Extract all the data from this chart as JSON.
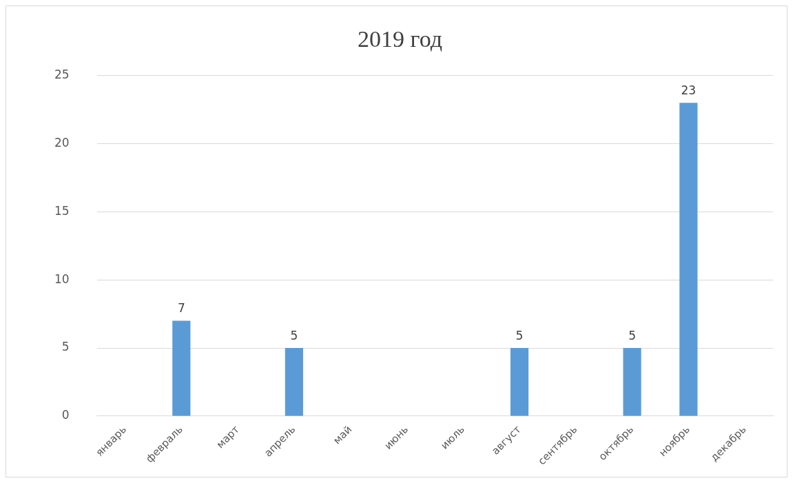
{
  "chart_data": {
    "type": "bar",
    "title": "2019 год",
    "categories": [
      "январь",
      "февраль",
      "март",
      "апрель",
      "май",
      "июнь",
      "июль",
      "август",
      "сентябрь",
      "октябрь",
      "ноябрь",
      "декабрь"
    ],
    "values": [
      null,
      7,
      null,
      5,
      null,
      null,
      null,
      5,
      null,
      5,
      23,
      null
    ],
    "color": "#5b9bd5",
    "ylim": [
      0,
      25
    ],
    "yticks": [
      0,
      5,
      10,
      15,
      20,
      25
    ],
    "grid": "y",
    "legend": false,
    "data_labels": true
  }
}
